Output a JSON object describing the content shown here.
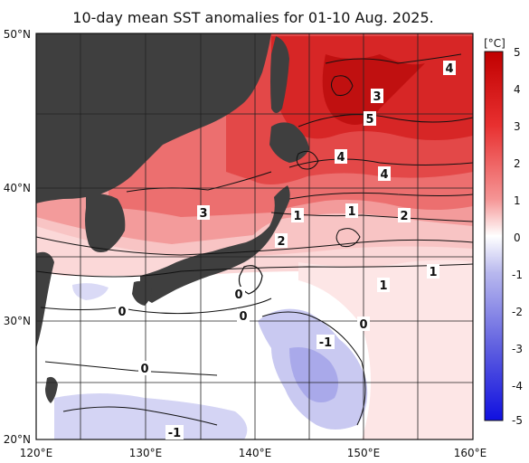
{
  "title": "10-day mean SST anomalies for 01-10 Aug. 2025.",
  "map": {
    "lon_range": [
      120,
      160
    ],
    "lat_range": [
      20,
      50
    ],
    "lat_ticks": [
      "50°N",
      "40°N",
      "30°N",
      "20°N"
    ],
    "lon_ticks": [
      "120°E",
      "130°E",
      "140°E",
      "150°E",
      "160°E"
    ],
    "land_color": "#3f3f3f",
    "grid": true
  },
  "colorbar": {
    "unit": "[°C]",
    "ticks": [
      "5",
      "4",
      "3",
      "2",
      "1",
      "0",
      "-1",
      "-2",
      "-3",
      "-4",
      "-5"
    ],
    "warm_color": "#e01010",
    "cold_color": "#2020e0"
  },
  "contour_labels": [
    {
      "text": "4"
    },
    {
      "text": "3"
    },
    {
      "text": "5"
    },
    {
      "text": "4"
    },
    {
      "text": "4"
    },
    {
      "text": "3"
    },
    {
      "text": "1"
    },
    {
      "text": "1"
    },
    {
      "text": "2"
    },
    {
      "text": "2"
    },
    {
      "text": "1"
    },
    {
      "text": "1"
    },
    {
      "text": "0"
    },
    {
      "text": "0"
    },
    {
      "text": "0"
    },
    {
      "text": "0"
    },
    {
      "text": "0"
    },
    {
      "text": "-1"
    },
    {
      "text": "-1"
    }
  ]
}
